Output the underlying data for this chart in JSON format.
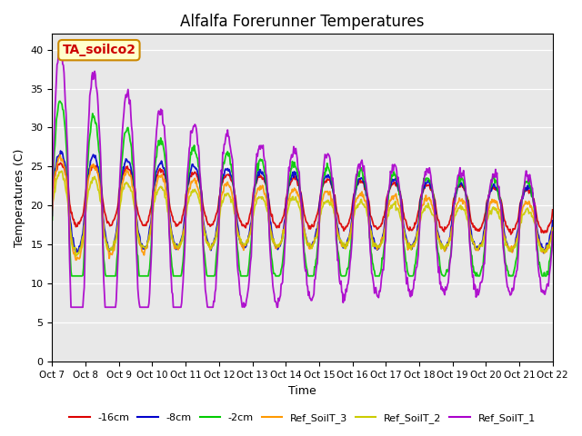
{
  "title": "Alfalfa Forerunner Temperatures",
  "xlabel": "Time",
  "ylabel": "Temperatures (C)",
  "ylim": [
    0,
    42
  ],
  "yticks": [
    0,
    5,
    10,
    15,
    20,
    25,
    30,
    35,
    40
  ],
  "background_color": "#e8e8e8",
  "annotation_text": "TA_soilco2",
  "annotation_bg": "#ffffcc",
  "annotation_border": "#cc8800",
  "annotation_text_color": "#cc0000",
  "series": {
    "-16cm": {
      "color": "#dd0000",
      "lw": 1.3
    },
    "-8cm": {
      "color": "#0000cc",
      "lw": 1.3
    },
    "-2cm": {
      "color": "#00cc00",
      "lw": 1.3
    },
    "Ref_SoilT_3": {
      "color": "#ff9900",
      "lw": 1.3
    },
    "Ref_SoilT_2": {
      "color": "#cccc00",
      "lw": 1.3
    },
    "Ref_SoilT_1": {
      "color": "#aa00cc",
      "lw": 1.3
    }
  },
  "n_days": 15,
  "pts_per_day": 48,
  "tick_labels": [
    "Oct 7",
    "Oct 8",
    "Oct 9",
    "Oct 10",
    "Oct 11",
    "Oct 12",
    "Oct 13",
    "Oct 14",
    "Oct 15",
    "Oct 16",
    "Oct 17",
    "Oct 18",
    "Oct 19",
    "Oct 20",
    "Oct 21",
    "Oct 22"
  ]
}
